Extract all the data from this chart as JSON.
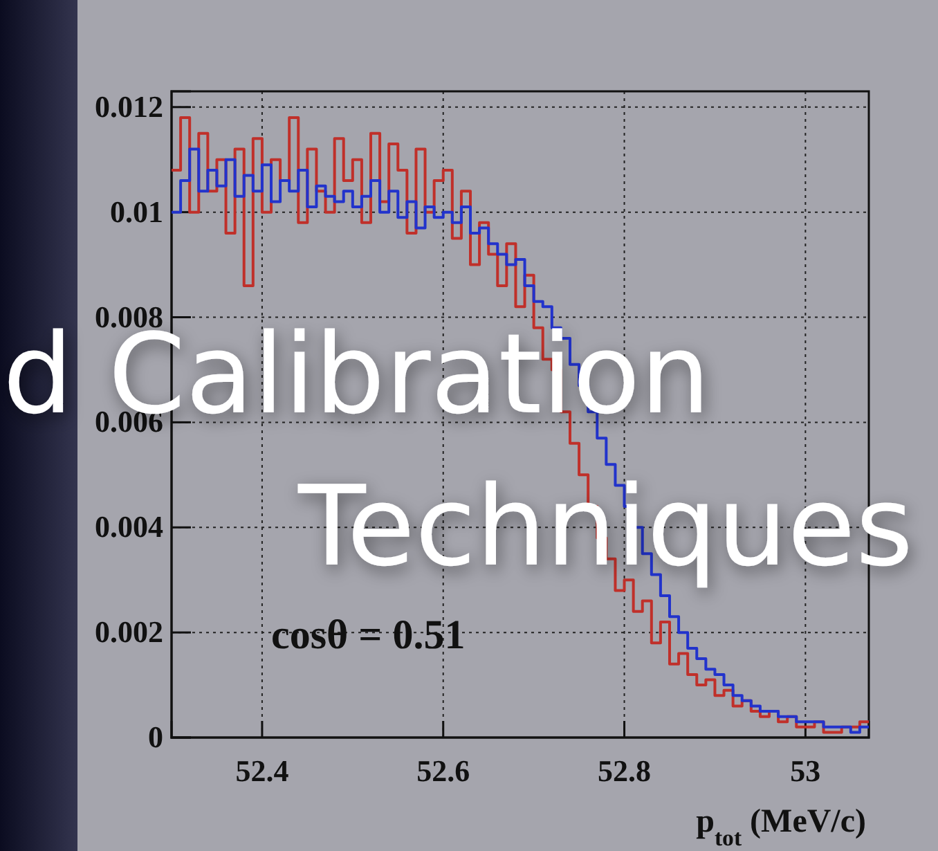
{
  "chart_data": {
    "type": "step",
    "xlabel": "p$_{tot}$ (MeV/c)",
    "x": [
      52.3,
      52.31,
      52.32,
      52.33,
      52.34,
      52.35,
      52.36,
      52.37,
      52.38,
      52.39,
      52.4,
      52.41,
      52.42,
      52.43,
      52.44,
      52.45,
      52.46,
      52.47,
      52.48,
      52.49,
      52.5,
      52.51,
      52.52,
      52.53,
      52.54,
      52.55,
      52.56,
      52.57,
      52.58,
      52.59,
      52.6,
      52.61,
      52.62,
      52.63,
      52.64,
      52.65,
      52.66,
      52.67,
      52.68,
      52.69,
      52.7,
      52.71,
      52.72,
      52.73,
      52.74,
      52.75,
      52.76,
      52.77,
      52.78,
      52.79,
      52.8,
      52.81,
      52.82,
      52.83,
      52.84,
      52.85,
      52.86,
      52.87,
      52.88,
      52.89,
      52.9,
      52.91,
      52.92,
      52.93,
      52.94,
      52.95,
      52.96,
      52.97,
      52.98,
      52.99,
      53.0,
      53.01,
      53.02,
      53.03,
      53.04,
      53.05,
      53.06,
      53.07
    ],
    "series": [
      {
        "color": "#c0302a",
        "values": [
          0.0108,
          0.0118,
          0.01,
          0.0115,
          0.0104,
          0.011,
          0.0096,
          0.0112,
          0.0086,
          0.0114,
          0.01,
          0.011,
          0.0106,
          0.0118,
          0.0098,
          0.0112,
          0.0104,
          0.01,
          0.0114,
          0.0106,
          0.011,
          0.0098,
          0.0115,
          0.0102,
          0.0113,
          0.0108,
          0.0096,
          0.0112,
          0.01,
          0.0106,
          0.0108,
          0.0095,
          0.0104,
          0.009,
          0.0098,
          0.0092,
          0.0086,
          0.0094,
          0.0082,
          0.0088,
          0.0078,
          0.0072,
          0.007,
          0.0062,
          0.0056,
          0.005,
          0.0044,
          0.0038,
          0.0034,
          0.0028,
          0.003,
          0.0024,
          0.0026,
          0.0018,
          0.0022,
          0.0014,
          0.0016,
          0.0012,
          0.001,
          0.0011,
          0.0008,
          0.0009,
          0.0006,
          0.0007,
          0.0005,
          0.0004,
          0.0005,
          0.0003,
          0.0004,
          0.0002,
          0.0002,
          0.0003,
          0.0001,
          0.0001,
          0.0002,
          0.0002,
          0.0003,
          0.0003
        ]
      },
      {
        "color": "#2233cc",
        "values": [
          0.01,
          0.0106,
          0.0112,
          0.0104,
          0.0108,
          0.0105,
          0.011,
          0.0103,
          0.0107,
          0.0104,
          0.0109,
          0.0102,
          0.0106,
          0.0104,
          0.0108,
          0.0101,
          0.0105,
          0.0103,
          0.0102,
          0.0104,
          0.0101,
          0.0103,
          0.0106,
          0.01,
          0.0104,
          0.0099,
          0.0102,
          0.0097,
          0.0101,
          0.0099,
          0.01,
          0.0098,
          0.0101,
          0.0096,
          0.0097,
          0.0094,
          0.0092,
          0.009,
          0.0091,
          0.0086,
          0.0083,
          0.0082,
          0.0078,
          0.0076,
          0.0071,
          0.0067,
          0.0062,
          0.0057,
          0.0052,
          0.0048,
          0.0044,
          0.004,
          0.0035,
          0.0031,
          0.0027,
          0.0023,
          0.002,
          0.0017,
          0.0015,
          0.0013,
          0.0012,
          0.001,
          0.0008,
          0.0007,
          0.0006,
          0.0005,
          0.0005,
          0.0004,
          0.0004,
          0.0003,
          0.0003,
          0.0003,
          0.0002,
          0.0002,
          0.0002,
          0.0001,
          0.0002,
          0.0002
        ]
      }
    ],
    "xlim": [
      52.3,
      53.07
    ],
    "xticks": [
      52.4,
      52.6,
      52.8,
      53
    ],
    "ylim": [
      0,
      0.0123
    ],
    "yticks": [
      0,
      0.002,
      0.004,
      0.006,
      0.008,
      0.01,
      0.012
    ],
    "grid": true,
    "line_style": "solid",
    "annotations": [
      "cosθ = 0.51",
      "d Calibration",
      "Techniques"
    ]
  }
}
